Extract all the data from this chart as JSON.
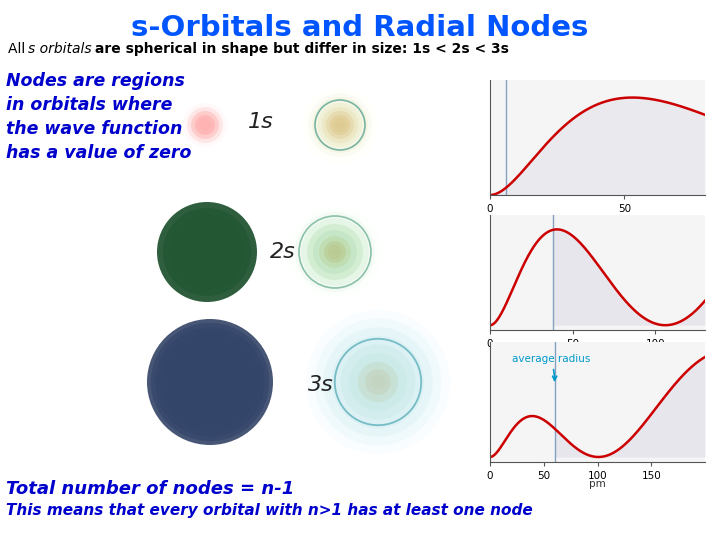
{
  "title": "s-Orbitals and Radial Nodes",
  "title_color": "#0055ff",
  "subtitle_plain": "All ",
  "subtitle_italic": "s orbitals",
  "subtitle_rest": " are spherical in shape but differ in size: 1s < 2s < 3s",
  "nodes_text_lines": [
    "Nodes are regions",
    "in orbitals where",
    "the wave function",
    "has a value of zero"
  ],
  "nodes_text_color": "#0000cc",
  "label_1s": "1s",
  "label_2s": "2s",
  "label_3s": "3s",
  "footer_line1": "Total number of nodes = n-1",
  "footer_line2": "This means that every orbital with n>1 has at least one node",
  "footer_color": "#0000cc",
  "avg_radius_label": "average radius",
  "avg_radius_color": "#0099cc",
  "plot_line_color": "#cc0000",
  "node_line_color": "#7799bb",
  "shade_color": "#e8e8f0",
  "background_color": "#ffffff",
  "plot_bg": "#f5f5f5"
}
